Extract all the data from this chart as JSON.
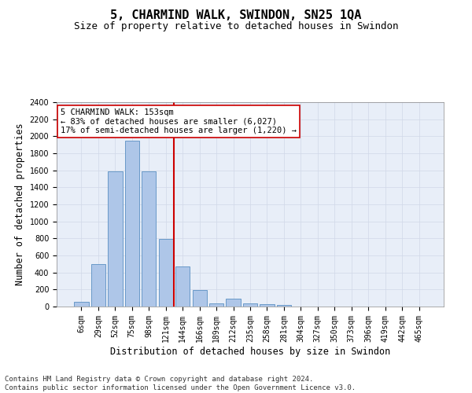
{
  "title1": "5, CHARMIND WALK, SWINDON, SN25 1QA",
  "title2": "Size of property relative to detached houses in Swindon",
  "xlabel": "Distribution of detached houses by size in Swindon",
  "ylabel": "Number of detached properties",
  "categories": [
    "6sqm",
    "29sqm",
    "52sqm",
    "75sqm",
    "98sqm",
    "121sqm",
    "144sqm",
    "166sqm",
    "189sqm",
    "212sqm",
    "235sqm",
    "258sqm",
    "281sqm",
    "304sqm",
    "327sqm",
    "350sqm",
    "373sqm",
    "396sqm",
    "419sqm",
    "442sqm",
    "465sqm"
  ],
  "values": [
    60,
    500,
    1590,
    1950,
    1590,
    790,
    470,
    195,
    35,
    90,
    35,
    25,
    20,
    0,
    0,
    0,
    0,
    0,
    0,
    0,
    0
  ],
  "bar_color": "#aec6e8",
  "bar_edge_color": "#5a8fc2",
  "vline_x": 5.5,
  "vline_color": "#cc0000",
  "annotation_text": "5 CHARMIND WALK: 153sqm\n← 83% of detached houses are smaller (6,027)\n17% of semi-detached houses are larger (1,220) →",
  "annotation_box_color": "#ffffff",
  "annotation_box_edge": "#cc0000",
  "ylim": [
    0,
    2400
  ],
  "yticks": [
    0,
    200,
    400,
    600,
    800,
    1000,
    1200,
    1400,
    1600,
    1800,
    2000,
    2200,
    2400
  ],
  "grid_color": "#d0d8e8",
  "bg_color": "#e8eef8",
  "footnote": "Contains HM Land Registry data © Crown copyright and database right 2024.\nContains public sector information licensed under the Open Government Licence v3.0.",
  "title1_fontsize": 11,
  "title2_fontsize": 9,
  "xlabel_fontsize": 8.5,
  "ylabel_fontsize": 8.5,
  "tick_fontsize": 7,
  "annot_fontsize": 7.5,
  "footnote_fontsize": 6.5
}
